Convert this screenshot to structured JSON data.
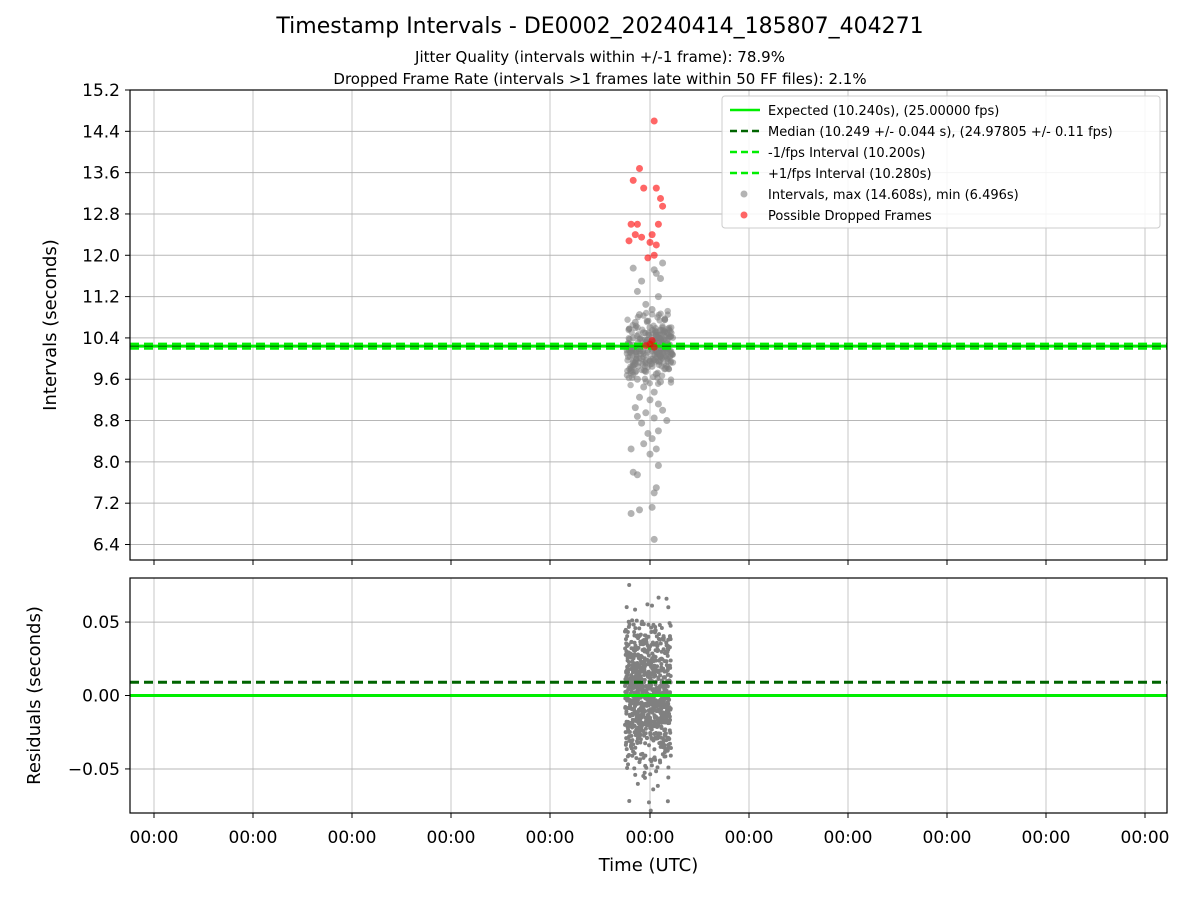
{
  "figure": {
    "title": "Timestamp Intervals - DE0002_20240414_185807_404271",
    "subtitle_1": "Jitter Quality (intervals within +/-1 frame): 78.9%",
    "subtitle_2": "Dropped Frame Rate (intervals >1 frames late within 50 FF files): 2.1%"
  },
  "chart_data": [
    {
      "type": "scatter",
      "id": "intervals",
      "title": "",
      "xlabel": "",
      "ylabel": "Intervals (seconds)",
      "ylim": [
        6.1,
        15.2
      ],
      "yticks": [
        6.4,
        7.2,
        8.0,
        8.8,
        9.6,
        10.4,
        11.2,
        12.0,
        12.8,
        13.6,
        14.4,
        15.2
      ],
      "ytick_labels": [
        "6.4",
        "7.2",
        "8.0",
        "8.8",
        "9.6",
        "10.4",
        "11.2",
        "12.0",
        "12.8",
        "13.6",
        "14.4",
        "15.2"
      ],
      "xtick_labels": [
        "00:00",
        "00:00",
        "00:00",
        "00:00",
        "00:00",
        "00:00",
        "00:00",
        "00:00",
        "00:00",
        "00:00",
        "00:00"
      ],
      "grid": true,
      "legend_position": "top-right",
      "lines": [
        {
          "name": "Expected (10.240s), (25.00000 fps)",
          "y": 10.24,
          "style": "solid",
          "color": "#00ee00"
        },
        {
          "name": "Median (10.249 +/- 0.044 s), (24.97805 +/- 0.11 fps)",
          "y": 10.249,
          "style": "dashed",
          "color": "#006400"
        },
        {
          "name": "-1/fps Interval (10.200s)",
          "y": 10.2,
          "style": "dashed",
          "color": "#00ee00"
        },
        {
          "name": "+1/fps Interval (10.280s)",
          "y": 10.28,
          "style": "dashed",
          "color": "#00ee00"
        }
      ],
      "series": [
        {
          "name": "Intervals, max (14.608s), min (6.496s)",
          "color": "#808080",
          "points": [
            [
              -0.08,
              11.75
            ],
            [
              0.02,
              11.72
            ],
            [
              0.05,
              11.55
            ],
            [
              -0.04,
              11.5
            ],
            [
              0.06,
              11.85
            ],
            [
              0.03,
              11.65
            ],
            [
              -0.06,
              11.3
            ],
            [
              0.04,
              11.2
            ],
            [
              -0.02,
              11.05
            ],
            [
              0.01,
              10.95
            ],
            [
              -0.05,
              10.85
            ],
            [
              0.07,
              10.75
            ],
            [
              -0.07,
              10.7
            ],
            [
              0.0,
              10.6
            ],
            [
              0.05,
              10.55
            ],
            [
              -0.03,
              10.5
            ],
            [
              0.03,
              10.45
            ],
            [
              -0.08,
              10.4
            ],
            [
              0.08,
              10.35
            ],
            [
              -0.01,
              10.3
            ],
            [
              0.02,
              10.2
            ],
            [
              -0.05,
              10.15
            ],
            [
              0.06,
              10.1
            ],
            [
              -0.04,
              10.0
            ],
            [
              0.04,
              9.95
            ],
            [
              -0.07,
              9.9
            ],
            [
              0.01,
              9.85
            ],
            [
              0.07,
              9.8
            ],
            [
              -0.02,
              9.75
            ],
            [
              0.03,
              9.7
            ],
            [
              -0.06,
              9.6
            ],
            [
              0.05,
              9.55
            ],
            [
              -0.03,
              9.45
            ],
            [
              0.02,
              9.35
            ],
            [
              -0.05,
              9.25
            ],
            [
              0.0,
              9.2
            ],
            [
              0.04,
              9.12
            ],
            [
              -0.07,
              9.05
            ],
            [
              0.06,
              9.0
            ],
            [
              -0.02,
              8.95
            ],
            [
              -0.06,
              8.88
            ],
            [
              0.02,
              8.85
            ],
            [
              0.08,
              8.8
            ],
            [
              -0.04,
              8.75
            ],
            [
              0.04,
              8.6
            ],
            [
              -0.01,
              8.55
            ],
            [
              0.01,
              8.45
            ],
            [
              -0.03,
              8.35
            ],
            [
              0.03,
              8.25
            ],
            [
              -0.09,
              8.25
            ],
            [
              0.0,
              8.15
            ],
            [
              -0.08,
              7.8
            ],
            [
              -0.06,
              7.75
            ],
            [
              0.04,
              7.93
            ],
            [
              0.03,
              7.5
            ],
            [
              0.02,
              7.4
            ],
            [
              -0.05,
              7.07
            ],
            [
              -0.09,
              7.0
            ],
            [
              0.01,
              7.12
            ],
            [
              0.02,
              6.5
            ]
          ]
        },
        {
          "name": "Possible Dropped Frames",
          "color": "#ff0000",
          "points": [
            [
              0.02,
              14.6
            ],
            [
              -0.05,
              13.68
            ],
            [
              -0.08,
              13.45
            ],
            [
              -0.03,
              13.3
            ],
            [
              0.03,
              13.3
            ],
            [
              0.05,
              13.1
            ],
            [
              0.06,
              12.95
            ],
            [
              -0.09,
              12.6
            ],
            [
              -0.06,
              12.6
            ],
            [
              0.04,
              12.6
            ],
            [
              -0.07,
              12.4
            ],
            [
              0.01,
              12.4
            ],
            [
              -0.04,
              12.35
            ],
            [
              -0.1,
              12.28
            ],
            [
              0.0,
              12.25
            ],
            [
              0.03,
              12.2
            ],
            [
              0.02,
              12.0
            ],
            [
              -0.01,
              11.95
            ],
            [
              0.01,
              10.35
            ],
            [
              0.0,
              10.28
            ],
            [
              -0.02,
              10.25
            ],
            [
              0.02,
              10.22
            ]
          ]
        }
      ]
    },
    {
      "type": "scatter",
      "id": "residuals",
      "title": "",
      "xlabel": "Time (UTC)",
      "ylabel": "Residuals (seconds)",
      "ylim": [
        -0.08,
        0.08
      ],
      "yticks": [
        -0.05,
        0.0,
        0.05
      ],
      "ytick_labels": [
        "−0.05",
        "0.00",
        "0.05"
      ],
      "xtick_labels": [
        "00:00",
        "00:00",
        "00:00",
        "00:00",
        "00:00",
        "00:00",
        "00:00",
        "00:00",
        "00:00",
        "00:00",
        "00:00"
      ],
      "grid": true,
      "lines": [
        {
          "y": 0.009,
          "style": "dashed",
          "color": "#006400"
        },
        {
          "y": 0.0,
          "style": "solid",
          "color": "#00ee00"
        }
      ],
      "series": [
        {
          "color": "#808080",
          "point_count": 900,
          "x_range": [
            -0.12,
            0.1
          ],
          "y_range": [
            -0.08,
            0.078
          ],
          "spread": 0.04
        }
      ]
    }
  ]
}
